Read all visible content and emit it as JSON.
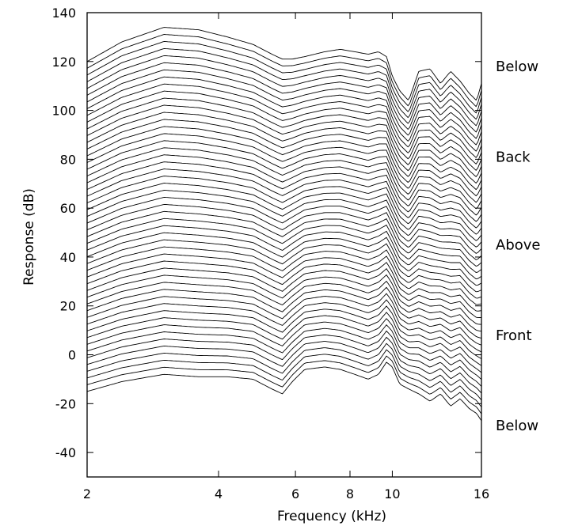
{
  "chart_data": {
    "type": "line",
    "title": "",
    "xlabel": "Frequency (kHz)",
    "ylabel": "Response (dB)",
    "x_scale": "log",
    "xlim": [
      2,
      16
    ],
    "ylim": [
      -50,
      140
    ],
    "x_ticks": [
      {
        "value": 2,
        "label": "2"
      },
      {
        "value": 4,
        "label": "4"
      },
      {
        "value": 6,
        "label": "6"
      },
      {
        "value": 8,
        "label": "8"
      },
      {
        "value": 10,
        "label": "10"
      },
      {
        "value": 16,
        "label": "16"
      }
    ],
    "y_ticks": [
      {
        "value": 140,
        "label": "140"
      },
      {
        "value": 120,
        "label": "120"
      },
      {
        "value": 100,
        "label": "100"
      },
      {
        "value": 80,
        "label": "80"
      },
      {
        "value": 60,
        "label": "60"
      },
      {
        "value": 40,
        "label": "40"
      },
      {
        "value": 20,
        "label": "20"
      },
      {
        "value": 0,
        "label": "0"
      },
      {
        "value": -20,
        "label": "-20"
      },
      {
        "value": -40,
        "label": "-40"
      }
    ],
    "grid": false,
    "line_color": "#000000",
    "stacked_curves": {
      "count": 50,
      "bottom_curve": {
        "x": [
          2,
          2.4,
          3,
          3.6,
          4.2,
          4.8,
          5.3,
          5.6,
          5.9,
          6.3,
          7,
          7.6,
          8.2,
          8.8,
          9.3,
          9.7,
          10,
          10.4,
          10.9,
          11.5,
          12.2,
          12.9,
          13.6,
          14.3,
          15,
          15.6,
          16
        ],
        "y": [
          -15,
          -11,
          -8,
          -9,
          -9,
          -10,
          -14,
          -16,
          -11,
          -6,
          -5,
          -6,
          -8,
          -10,
          -8,
          -3,
          -5,
          -12,
          -14,
          -16,
          -19,
          -16,
          -21,
          -18,
          -22,
          -24,
          -27
        ]
      },
      "top_curve": {
        "x": [
          2,
          2.4,
          3,
          3.6,
          4.2,
          4.8,
          5.3,
          5.6,
          5.9,
          6.3,
          7,
          7.6,
          8.2,
          8.8,
          9.3,
          9.7,
          10,
          10.4,
          10.9,
          11.5,
          12.2,
          12.9,
          13.6,
          14.3,
          15,
          15.6,
          16
        ],
        "y": [
          120,
          128,
          134,
          133,
          130,
          127,
          123,
          121,
          121,
          122,
          124,
          125,
          124,
          123,
          124,
          122,
          114,
          108,
          104,
          116,
          117,
          111,
          116,
          112,
          107,
          104,
          111
        ]
      }
    },
    "side_labels": [
      {
        "label": "Below",
        "y": 118
      },
      {
        "label": "Back",
        "y": 81
      },
      {
        "label": "Above",
        "y": 45
      },
      {
        "label": "Front",
        "y": 8
      },
      {
        "label": "Below",
        "y": -29
      }
    ]
  }
}
